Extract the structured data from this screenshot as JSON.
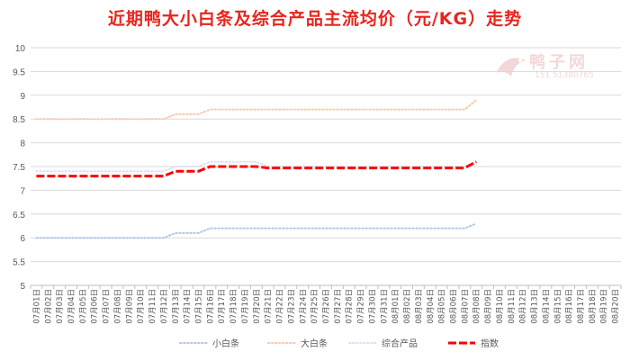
{
  "chart_data": {
    "type": "line",
    "title": "近期鸭大小白条及综合产品主流均价（元/KG）走势",
    "categories": [
      "07月01日",
      "07月02日",
      "07月03日",
      "07月04日",
      "07月05日",
      "07月06日",
      "07月07日",
      "07月08日",
      "07月09日",
      "07月10日",
      "07月11日",
      "07月12日",
      "07月13日",
      "07月14日",
      "07月15日",
      "07月16日",
      "07月17日",
      "07月18日",
      "07月19日",
      "07月20日",
      "07月21日",
      "07月22日",
      "07月23日",
      "07月24日",
      "07月25日",
      "07月26日",
      "07月27日",
      "07月28日",
      "07月29日",
      "07月30日",
      "07月31日",
      "08月01日",
      "08月02日",
      "08月03日",
      "08月04日",
      "08月05日",
      "08月06日",
      "08月07日",
      "08月08日",
      "08月09日",
      "08月10日",
      "08月11日",
      "08月12日",
      "08月13日",
      "08月14日",
      "08月15日",
      "08月16日",
      "08月17日",
      "08月18日",
      "08月19日",
      "08月20日"
    ],
    "ylim": [
      5,
      10
    ],
    "yticks": [
      "5",
      "5.5",
      "6",
      "6.5",
      "7",
      "7.5",
      "8",
      "8.5",
      "9",
      "9.5",
      "10"
    ],
    "legend_position": "bottom",
    "series": [
      {
        "name": "小白条",
        "color": "#b4c7e7",
        "style": "dotted",
        "values": [
          6,
          6,
          6,
          6,
          6,
          6,
          6,
          6,
          6,
          6,
          6,
          6,
          6.1,
          6.1,
          6.1,
          6.2,
          6.2,
          6.2,
          6.2,
          6.2,
          6.2,
          6.2,
          6.2,
          6.2,
          6.2,
          6.2,
          6.2,
          6.2,
          6.2,
          6.2,
          6.2,
          6.2,
          6.2,
          6.2,
          6.2,
          6.2,
          6.2,
          6.2,
          6.3,
          null,
          null,
          null,
          null,
          null,
          null,
          null,
          null,
          null,
          null,
          null,
          null
        ]
      },
      {
        "name": "大白条",
        "color": "#f8cbad",
        "style": "dotted",
        "values": [
          8.5,
          8.5,
          8.5,
          8.5,
          8.5,
          8.5,
          8.5,
          8.5,
          8.5,
          8.5,
          8.5,
          8.5,
          8.6,
          8.6,
          8.6,
          8.7,
          8.7,
          8.7,
          8.7,
          8.7,
          8.7,
          8.7,
          8.7,
          8.7,
          8.7,
          8.7,
          8.7,
          8.7,
          8.7,
          8.7,
          8.7,
          8.7,
          8.7,
          8.7,
          8.7,
          8.7,
          8.7,
          8.7,
          8.9,
          null,
          null,
          null,
          null,
          null,
          null,
          null,
          null,
          null,
          null,
          null,
          null
        ]
      },
      {
        "name": "综合产品",
        "color": "#d9e2f3",
        "style": "dotted",
        "values": [
          7.4,
          7.4,
          7.4,
          7.4,
          7.4,
          7.4,
          7.4,
          7.4,
          7.4,
          7.4,
          7.4,
          7.4,
          7.5,
          7.5,
          7.5,
          7.6,
          7.6,
          7.6,
          7.6,
          7.6,
          7.5,
          7.5,
          7.5,
          7.5,
          7.5,
          7.5,
          7.5,
          7.5,
          7.5,
          7.5,
          7.5,
          7.5,
          7.5,
          7.5,
          7.5,
          7.5,
          7.5,
          7.5,
          7.6,
          null,
          null,
          null,
          null,
          null,
          null,
          null,
          null,
          null,
          null,
          null,
          null
        ]
      },
      {
        "name": "指数",
        "color": "#ff0000",
        "style": "dashed-bold",
        "values": [
          7.3,
          7.3,
          7.3,
          7.3,
          7.3,
          7.3,
          7.3,
          7.3,
          7.3,
          7.3,
          7.3,
          7.3,
          7.4,
          7.4,
          7.4,
          7.5,
          7.5,
          7.5,
          7.5,
          7.5,
          7.47,
          7.47,
          7.47,
          7.47,
          7.47,
          7.47,
          7.47,
          7.47,
          7.47,
          7.47,
          7.47,
          7.47,
          7.47,
          7.47,
          7.47,
          7.47,
          7.47,
          7.47,
          7.6,
          null,
          null,
          null,
          null,
          null,
          null,
          null,
          null,
          null,
          null,
          null,
          null
        ]
      }
    ]
  },
  "watermark": {
    "brand": "鸭子网",
    "phone": "151 51380765"
  }
}
